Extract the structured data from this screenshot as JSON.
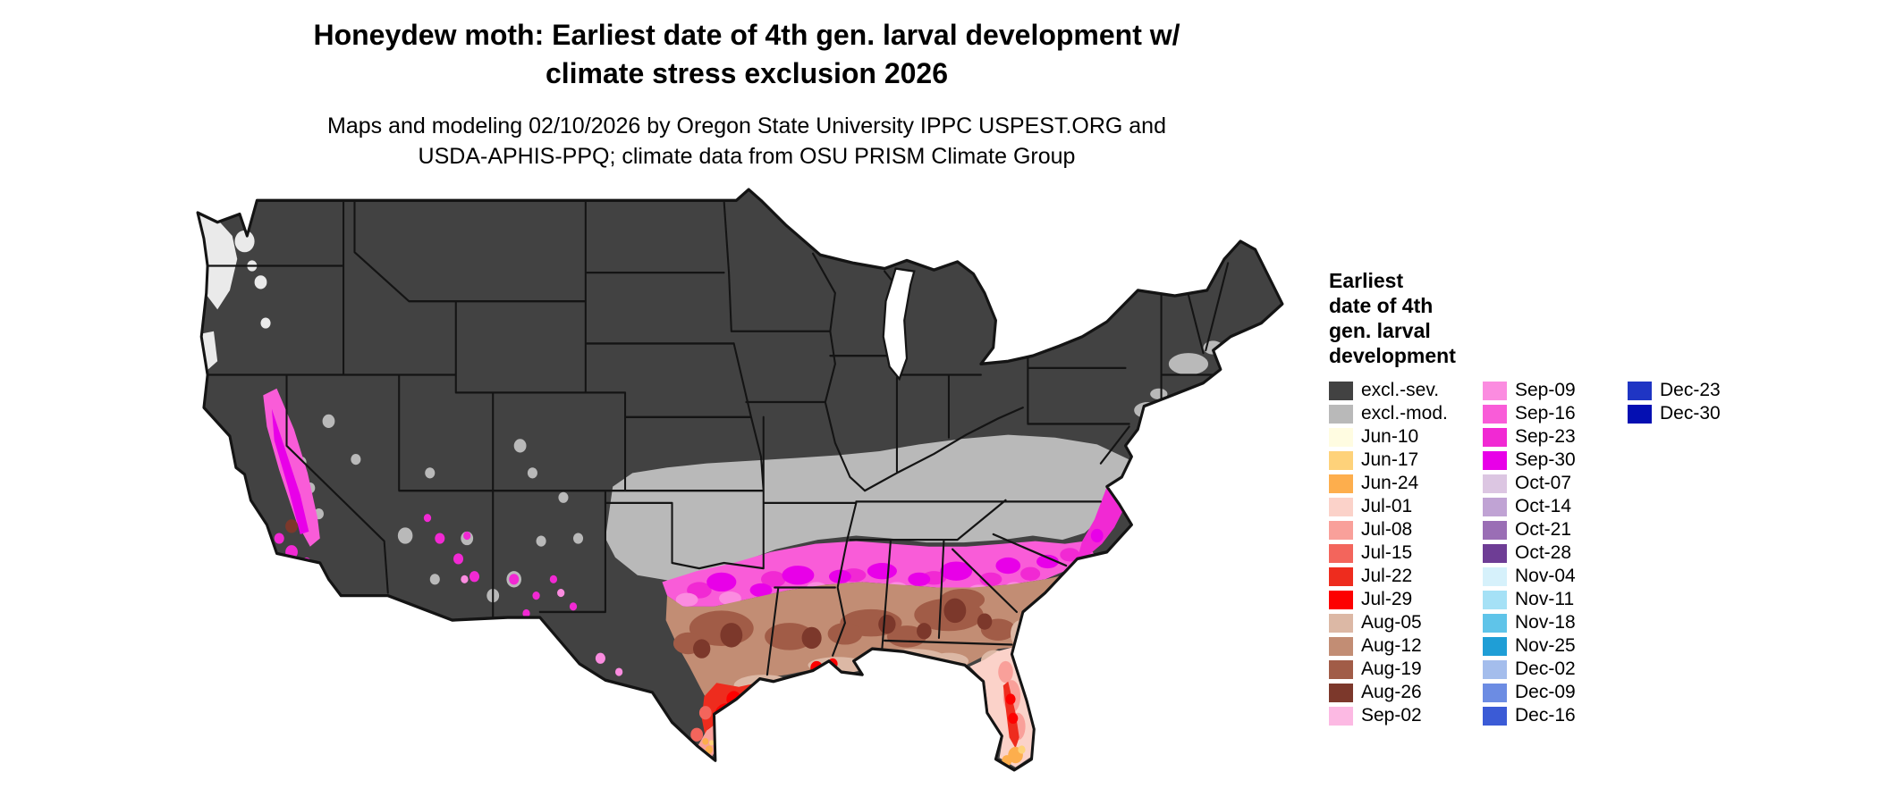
{
  "header": {
    "title_line1": "Honeydew moth: Earliest date of 4th gen. larval development w/",
    "title_line2": "climate stress exclusion 2026",
    "subtitle_line1": "Maps and modeling 02/10/2026 by Oregon State University IPPC USPEST.ORG and",
    "subtitle_line2": "USDA-APHIS-PPQ; climate data from OSU PRISM Climate Group"
  },
  "legend": {
    "title_lines": [
      "Earliest",
      "date of 4th",
      "gen. larval",
      "development"
    ],
    "columns": [
      {
        "items": [
          {
            "label": "excl.-sev.",
            "color": "#424242"
          },
          {
            "label": "excl.-mod.",
            "color": "#b9b9b9"
          },
          {
            "label": "Jun-10",
            "color": "#fffce1"
          },
          {
            "label": "Jun-17",
            "color": "#fed27a"
          },
          {
            "label": "Jun-24",
            "color": "#fdae4d"
          },
          {
            "label": "Jul-01",
            "color": "#fbd2c9"
          },
          {
            "label": "Jul-08",
            "color": "#f9a09a"
          },
          {
            "label": "Jul-15",
            "color": "#f3655c"
          },
          {
            "label": "Jul-22",
            "color": "#ee2c1e"
          },
          {
            "label": "Jul-29",
            "color": "#fd0000"
          },
          {
            "label": "Aug-05",
            "color": "#dcb8a5"
          },
          {
            "label": "Aug-12",
            "color": "#c28d74"
          },
          {
            "label": "Aug-19",
            "color": "#a15c47"
          },
          {
            "label": "Aug-26",
            "color": "#7c382b"
          },
          {
            "label": "Sep-02",
            "color": "#fcb9e3"
          }
        ]
      },
      {
        "items": [
          {
            "label": "Sep-09",
            "color": "#fb8ce0"
          },
          {
            "label": "Sep-16",
            "color": "#f95cd8"
          },
          {
            "label": "Sep-23",
            "color": "#f129d3"
          },
          {
            "label": "Sep-30",
            "color": "#e800e8"
          },
          {
            "label": "Oct-07",
            "color": "#dcc6e2"
          },
          {
            "label": "Oct-14",
            "color": "#c0a3d4"
          },
          {
            "label": "Oct-21",
            "color": "#9a6eb5"
          },
          {
            "label": "Oct-28",
            "color": "#6e3d95"
          },
          {
            "label": "Nov-04",
            "color": "#d6f1fb"
          },
          {
            "label": "Nov-11",
            "color": "#a5e1f6"
          },
          {
            "label": "Nov-18",
            "color": "#5fc4e9"
          },
          {
            "label": "Nov-25",
            "color": "#1f9ed6"
          },
          {
            "label": "Dec-02",
            "color": "#a4bdec"
          },
          {
            "label": "Dec-09",
            "color": "#6c8ce3"
          },
          {
            "label": "Dec-16",
            "color": "#3b5bd6"
          }
        ]
      },
      {
        "items": [
          {
            "label": "Dec-23",
            "color": "#1f35c4"
          },
          {
            "label": "Dec-30",
            "color": "#040fb2"
          }
        ]
      }
    ]
  },
  "map": {
    "colors": {
      "excl_sev": "#424242",
      "excl_mod": "#b9b9b9",
      "coast_light": "#eaeaea",
      "jun17": "#fed27a",
      "jun24": "#fdae4d",
      "jul01": "#fbd2c9",
      "jul08": "#f9a09a",
      "jul15": "#f3655c",
      "jul22": "#ee2c1e",
      "jul29": "#fd0000",
      "aug05": "#dcb8a5",
      "aug12": "#c28d74",
      "aug19": "#a15c47",
      "aug26": "#7c382b",
      "sep02": "#fcb9e3",
      "sep09": "#fb8ce0",
      "sep16": "#f95cd8",
      "sep23": "#f129d3",
      "sep30": "#e800e8",
      "water": "#ffffff",
      "border": "#141414"
    }
  }
}
